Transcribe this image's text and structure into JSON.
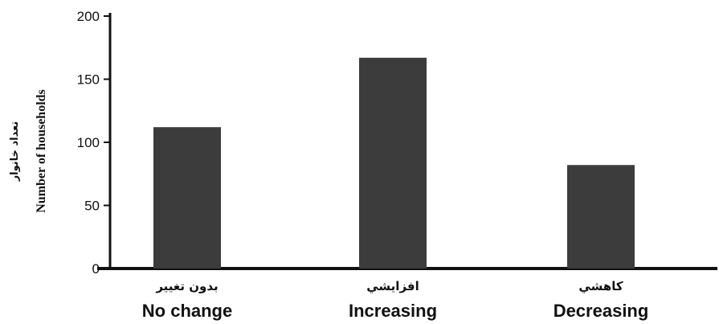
{
  "chart_data": {
    "type": "bar",
    "categories": [
      "No change",
      "Increasing",
      "Decreasing"
    ],
    "categories_fa": [
      "بدون تغيير",
      "افزايشي",
      "كاهشي"
    ],
    "values": [
      112,
      167,
      82
    ],
    "ylabel": "Number of households",
    "ylabel_fa": "تعداد خانوار",
    "xlabel": "",
    "title": "",
    "ylim": [
      0,
      200
    ],
    "yticks": [
      0,
      50,
      100,
      150,
      200
    ],
    "bar_color": "#3c3c3c",
    "grid": false
  }
}
